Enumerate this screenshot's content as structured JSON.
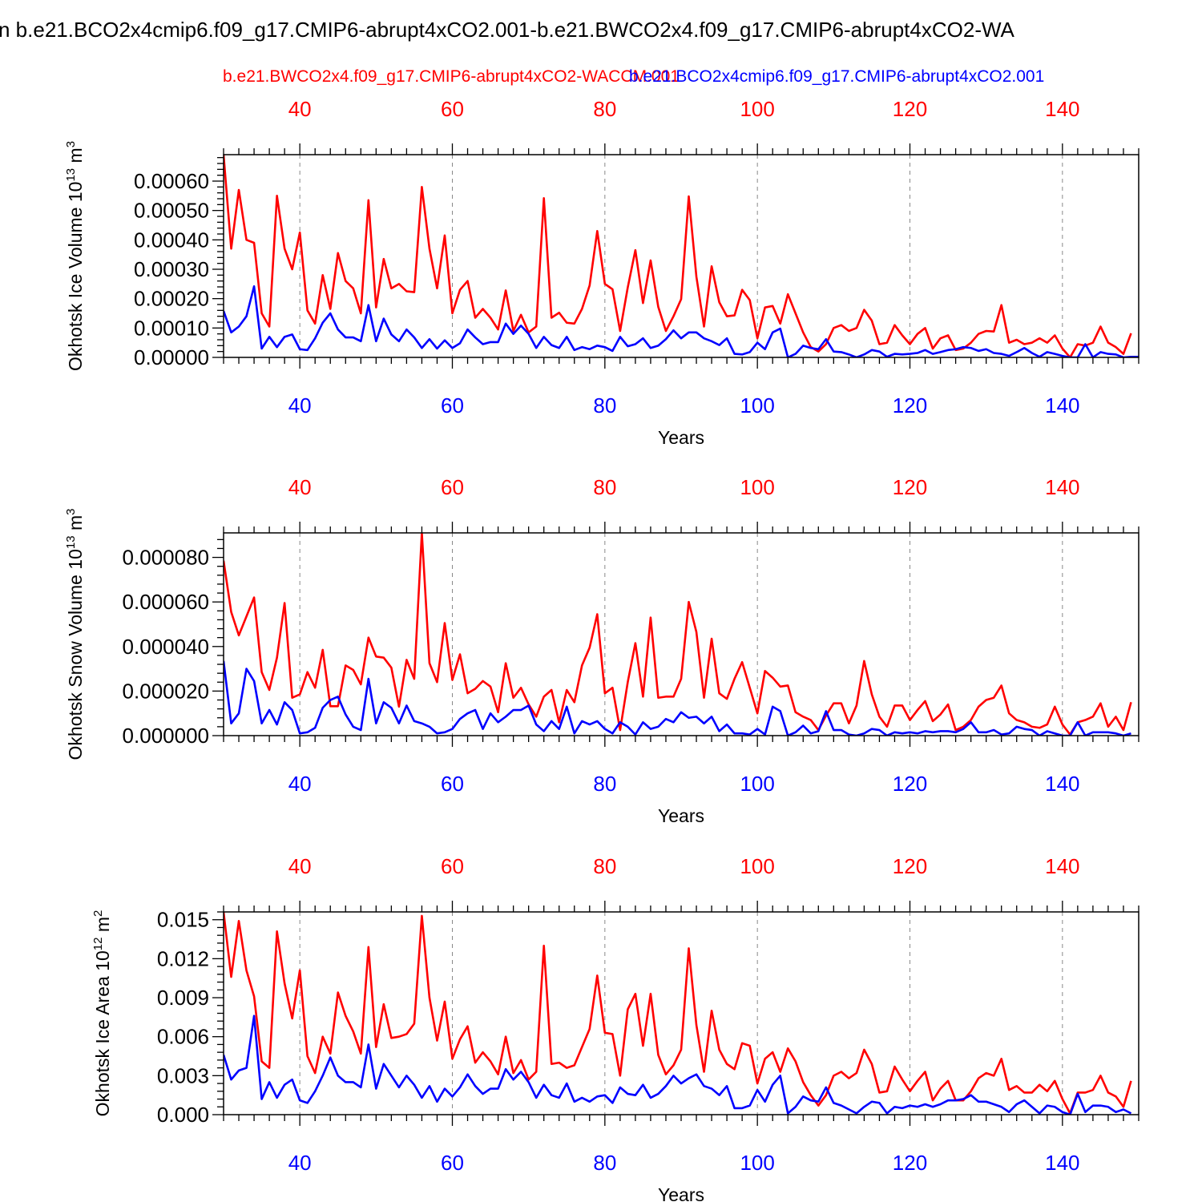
{
  "title": "n b.e21.BCO2x4cmip6.f09_g17.CMIP6-abrupt4xCO2.001-b.e21.BWCO2x4.f09_g17.CMIP6-abrupt4xCO2-WA",
  "legend": {
    "red_label": "b.e21.BWCO2x4.f09_g17.CMIP6-abrupt4xCO2-WACCM.001",
    "blue_label": "b.e21.BCO2x4cmip6.f09_g17.CMIP6-abrupt4xCO2.001"
  },
  "colors": {
    "red": "#ff0000",
    "blue": "#0000ff",
    "axis": "#000000",
    "grid": "#888888"
  },
  "chart_data": [
    {
      "type": "line",
      "ylabel": "Okhotsk Ice Volume 10",
      "ylabel_exp": "13",
      "ylabel_unit": "m",
      "ylabel_unit_exp": "3",
      "xlabel": "Years",
      "xlim": [
        30,
        150
      ],
      "ylim": [
        0,
        0.00069
      ],
      "yticks": [
        0,
        0.0001,
        0.0002,
        0.0003,
        0.0004,
        0.0005,
        0.0006
      ],
      "ytick_labels": [
        "0.00000",
        "0.00010",
        "0.00020",
        "0.00030",
        "0.00040",
        "0.00050",
        "0.00060"
      ],
      "xticks": [
        40,
        60,
        80,
        100,
        120,
        140
      ],
      "xtick_labels": [
        "40",
        "60",
        "80",
        "100",
        "120",
        "140"
      ],
      "x_start": 30,
      "series": [
        {
          "name": "b.e21.BWCO2x4.f09_g17.CMIP6-abrupt4xCO2-WACCM.001",
          "color": "red",
          "values": [
            0.00069,
            0.00037,
            0.00057,
            0.0004,
            0.00039,
            0.00015,
            0.000105,
            0.00055,
            0.00037,
            0.0003,
            0.000425,
            0.00016,
            0.000115,
            0.00028,
            0.000165,
            0.000355,
            0.00026,
            0.000235,
            0.00015,
            0.000535,
            0.00017,
            0.000335,
            0.000235,
            0.00025,
            0.000225,
            0.000222,
            0.00058,
            0.00037,
            0.000235,
            0.000415,
            0.00015,
            0.00023,
            0.00026,
            0.000135,
            0.000165,
            0.000135,
            9.5e-05,
            0.000228,
            9e-05,
            0.000145,
            8.5e-05,
            0.000105,
            0.000542,
            0.000135,
            0.000152,
            0.000118,
            0.000115,
            0.000165,
            0.000245,
            0.00043,
            0.00025,
            0.000232,
            9e-05,
            0.000238,
            0.000365,
            0.000185,
            0.00033,
            0.000172,
            9e-05,
            0.00014,
            0.000198,
            0.000548,
            0.000275,
            0.000105,
            0.00031,
            0.000188,
            0.00014,
            0.000143,
            0.00023,
            0.000195,
            6.5e-05,
            0.00017,
            0.000175,
            0.000115,
            0.000215,
            0.00015,
            8.5e-05,
            3.5e-05,
            2e-05,
            4.5e-05,
            0.0001,
            0.00011,
            9e-05,
            0.0001,
            0.000162,
            0.000125,
            4.5e-05,
            5e-05,
            0.00011,
            7.5e-05,
            4.5e-05,
            8e-05,
            0.0001,
            3e-05,
            6.5e-05,
            7.5e-05,
            2.5e-05,
            3e-05,
            5e-05,
            8e-05,
            9e-05,
            8.8e-05,
            0.000178,
            5e-05,
            6e-05,
            4.5e-05,
            5e-05,
            6.5e-05,
            5e-05,
            7.5e-05,
            3e-05,
            0.0,
            4.5e-05,
            4e-05,
            5e-05,
            0.000105,
            5e-05,
            3.5e-05,
            1.2e-05,
            8.2e-05
          ]
        },
        {
          "name": "b.e21.BCO2x4cmip6.f09_g17.CMIP6-abrupt4xCO2.001",
          "color": "blue",
          "values": [
            0.000158,
            8.5e-05,
            0.000105,
            0.00014,
            0.000242,
            3e-05,
            7e-05,
            3.5e-05,
            7e-05,
            7.8e-05,
            2.8e-05,
            2.5e-05,
            6.5e-05,
            0.000118,
            0.00015,
            9.5e-05,
            6.8e-05,
            6.8e-05,
            5.5e-05,
            0.000178,
            5.5e-05,
            0.000132,
            7.8e-05,
            5.5e-05,
            9.5e-05,
            6.8e-05,
            3.2e-05,
            6.2e-05,
            3e-05,
            5.8e-05,
            3.2e-05,
            4.8e-05,
            9.5e-05,
            6.8e-05,
            4.5e-05,
            5.2e-05,
            5.2e-05,
            0.000115,
            8e-05,
            0.000108,
            8e-05,
            3.2e-05,
            7e-05,
            4.2e-05,
            3.2e-05,
            7e-05,
            2.5e-05,
            3.5e-05,
            2.8e-05,
            4e-05,
            3.5e-05,
            2.2e-05,
            7e-05,
            3.8e-05,
            4.5e-05,
            6.5e-05,
            3.2e-05,
            4e-05,
            6.2e-05,
            9.2e-05,
            6.5e-05,
            8.5e-05,
            8.5e-05,
            6.5e-05,
            5.5e-05,
            4.2e-05,
            6.5e-05,
            1.2e-05,
            1e-05,
            1.8e-05,
            5e-05,
            2.8e-05,
            8.5e-05,
            9.8e-05,
            0.0,
            1.2e-05,
            4e-05,
            3.2e-05,
            2.8e-05,
            6.2e-05,
            2e-05,
            1.8e-05,
            1e-05,
            0.0,
            1e-05,
            2.5e-05,
            2e-05,
            2e-06,
            1.2e-05,
            1e-05,
            1.2e-05,
            1.5e-05,
            2.5e-05,
            1.2e-05,
            1.8e-05,
            2.5e-05,
            2.8e-05,
            3.5e-05,
            3.2e-05,
            2.2e-05,
            2.8e-05,
            1.5e-05,
            1.2e-05,
            5e-06,
            1.8e-05,
            3.2e-05,
            1.5e-05,
            2e-06,
            1.8e-05,
            1.2e-05,
            5e-06,
            0.0,
            0.0,
            4.5e-05,
            0.0,
            1.8e-05,
            1.2e-05,
            1e-05,
            0.0,
            2e-06,
            2e-06
          ]
        }
      ]
    },
    {
      "type": "line",
      "ylabel": "Okhotsk Snow Volume 10",
      "ylabel_exp": "13",
      "ylabel_unit": "m",
      "ylabel_unit_exp": "3",
      "xlabel": "Years",
      "xlim": [
        30,
        150
      ],
      "ylim": [
        0,
        9.1e-05
      ],
      "yticks": [
        0,
        2e-05,
        4e-05,
        6e-05,
        8e-05
      ],
      "ytick_labels": [
        "0.000000",
        "0.000020",
        "0.000040",
        "0.000060",
        "0.000080"
      ],
      "xticks": [
        40,
        60,
        80,
        100,
        120,
        140
      ],
      "xtick_labels": [
        "40",
        "60",
        "80",
        "100",
        "120",
        "140"
      ],
      "x_start": 30,
      "series": [
        {
          "name": "b.e21.BWCO2x4.f09_g17.CMIP6-abrupt4xCO2-WACCM.001",
          "color": "red",
          "values": [
            7.85e-05,
            5.55e-05,
            4.5e-05,
            5.35e-05,
            6.2e-05,
            2.85e-05,
            2.05e-05,
            3.5e-05,
            5.95e-05,
            1.7e-05,
            1.85e-05,
            2.85e-05,
            2.15e-05,
            3.85e-05,
            1.32e-05,
            1.32e-05,
            3.15e-05,
            2.95e-05,
            2.3e-05,
            4.4e-05,
            3.55e-05,
            3.5e-05,
            3.05e-05,
            1.3e-05,
            3.4e-05,
            2.55e-05,
            9.1e-05,
            3.25e-05,
            2.4e-05,
            5.05e-05,
            2.5e-05,
            3.65e-05,
            1.9e-05,
            2.1e-05,
            2.45e-05,
            2.2e-05,
            1.05e-05,
            3.25e-05,
            1.7e-05,
            2.15e-05,
            1.4e-05,
            8.5e-06,
            1.75e-05,
            2.05e-05,
            6e-06,
            2.05e-05,
            1.5e-05,
            3.15e-05,
            3.95e-05,
            5.45e-05,
            1.9e-05,
            2.15e-05,
            2.5e-06,
            2.4e-05,
            4.15e-05,
            1.75e-05,
            5.3e-05,
            1.7e-05,
            1.75e-05,
            1.75e-05,
            2.55e-05,
            6e-05,
            4.65e-05,
            1.7e-05,
            4.35e-05,
            1.9e-05,
            1.65e-05,
            2.55e-05,
            3.3e-05,
            2.15e-05,
            1e-05,
            2.9e-05,
            2.6e-05,
            2.2e-05,
            2.25e-05,
            1.05e-05,
            8.5e-06,
            7e-06,
            2.5e-06,
            9e-06,
            1.45e-05,
            1.45e-05,
            5.5e-06,
            1.35e-05,
            3.35e-05,
            1.85e-05,
            8.5e-06,
            4e-06,
            1.35e-05,
            1.35e-05,
            7e-06,
            1.15e-05,
            1.55e-05,
            6.5e-06,
            9.5e-06,
            1.4e-05,
            2.5e-06,
            4e-06,
            7e-06,
            1.3e-05,
            1.6e-05,
            1.7e-05,
            2.25e-05,
            1e-05,
            7e-06,
            6e-06,
            4e-06,
            3.5e-06,
            5e-06,
            1.3e-05,
            5e-06,
            5e-07,
            6e-06,
            7e-06,
            8.5e-06,
            1.45e-05,
            4e-06,
            8.5e-06,
            2.5e-06,
            1.5e-05
          ]
        },
        {
          "name": "b.e21.BCO2x4cmip6.f09_g17.CMIP6-abrupt4xCO2.001",
          "color": "blue",
          "values": [
            3.35e-05,
            5.5e-06,
            1e-05,
            3e-05,
            2.45e-05,
            5.5e-06,
            1.15e-05,
            5e-06,
            1.5e-05,
            1.15e-05,
            1e-06,
            1.5e-06,
            3.5e-06,
            1.25e-05,
            1.6e-05,
            1.75e-05,
            9.5e-06,
            4e-06,
            2.5e-06,
            2.55e-05,
            5.5e-06,
            1.5e-05,
            1.25e-05,
            5.5e-06,
            1.35e-05,
            6.5e-06,
            5.5e-06,
            4e-06,
            1e-06,
            1.5e-06,
            3e-06,
            7.5e-06,
            1e-05,
            1.15e-05,
            3e-06,
            1e-05,
            6e-06,
            8.5e-06,
            1.15e-05,
            1.15e-05,
            1.35e-05,
            5e-06,
            2e-06,
            6.5e-06,
            3e-06,
            1.3e-05,
            1e-06,
            6.5e-06,
            5e-06,
            6.5e-06,
            3e-06,
            1e-06,
            6e-06,
            4e-06,
            5e-07,
            6e-06,
            3e-06,
            4e-06,
            7.5e-06,
            6e-06,
            1.05e-05,
            8e-06,
            8.5e-06,
            5.5e-06,
            8.5e-06,
            2e-06,
            5e-06,
            1e-06,
            1e-06,
            5e-07,
            3e-06,
            5e-07,
            1.3e-05,
            1.1e-05,
            0.0,
            1.5e-06,
            4.5e-06,
            1e-06,
            2e-06,
            1.1e-05,
            2.5e-06,
            2.5e-06,
            5e-07,
            0.0,
            1e-06,
            3e-06,
            2.5e-06,
            0.0,
            1.5e-06,
            1e-06,
            1.5e-06,
            1e-06,
            2e-06,
            1.5e-06,
            2e-06,
            2e-06,
            1.5e-06,
            3e-06,
            6e-06,
            1.5e-06,
            1.5e-06,
            2.5e-06,
            5e-07,
            1e-06,
            4e-06,
            3e-06,
            2.5e-06,
            0.0,
            2e-06,
            1e-06,
            0.0,
            0.0,
            6e-06,
            0.0,
            1.5e-06,
            1.5e-06,
            1.5e-06,
            1e-06,
            0.0,
            1e-06
          ]
        }
      ]
    },
    {
      "type": "line",
      "ylabel": "Okhotsk Ice Area 10",
      "ylabel_exp": "12",
      "ylabel_unit": "m",
      "ylabel_unit_exp": "2",
      "xlabel": "Years",
      "xlim": [
        30,
        150
      ],
      "ylim": [
        0,
        0.0156
      ],
      "yticks": [
        0,
        0.003,
        0.006,
        0.009,
        0.012,
        0.015
      ],
      "ytick_labels": [
        "0.000",
        "0.003",
        "0.006",
        "0.009",
        "0.012",
        "0.015"
      ],
      "xticks": [
        40,
        60,
        80,
        100,
        120,
        140
      ],
      "xtick_labels": [
        "40",
        "60",
        "80",
        "100",
        "120",
        "140"
      ],
      "x_start": 30,
      "series": [
        {
          "name": "b.e21.BWCO2x4.f09_g17.CMIP6-abrupt4xCO2-WACCM.001",
          "color": "red",
          "values": [
            0.0156,
            0.0106,
            0.0149,
            0.0111,
            0.0091,
            0.0041,
            0.0036,
            0.0141,
            0.0101,
            0.0074,
            0.0111,
            0.0045,
            0.0032,
            0.006,
            0.0047,
            0.0094,
            0.0076,
            0.0064,
            0.0047,
            0.0129,
            0.0052,
            0.0085,
            0.0059,
            0.006,
            0.0062,
            0.007,
            0.0153,
            0.009,
            0.0057,
            0.0087,
            0.0043,
            0.0058,
            0.0068,
            0.004,
            0.0048,
            0.0041,
            0.0031,
            0.006,
            0.0032,
            0.0042,
            0.0027,
            0.0033,
            0.013,
            0.0039,
            0.004,
            0.0036,
            0.0038,
            0.0052,
            0.0066,
            0.0107,
            0.0063,
            0.0062,
            0.003,
            0.0081,
            0.0093,
            0.0053,
            0.0093,
            0.0046,
            0.0031,
            0.0038,
            0.005,
            0.0128,
            0.0069,
            0.0033,
            0.008,
            0.005,
            0.0039,
            0.0035,
            0.0055,
            0.0053,
            0.0024,
            0.0043,
            0.0048,
            0.0033,
            0.0051,
            0.0041,
            0.0025,
            0.0015,
            0.0007,
            0.0015,
            0.003,
            0.0033,
            0.0028,
            0.0032,
            0.005,
            0.0039,
            0.0017,
            0.0018,
            0.0037,
            0.0027,
            0.0018,
            0.0026,
            0.0033,
            0.0011,
            0.002,
            0.0026,
            0.0011,
            0.0011,
            0.0018,
            0.0028,
            0.0032,
            0.003,
            0.0043,
            0.0019,
            0.0022,
            0.0017,
            0.0017,
            0.0023,
            0.0018,
            0.0026,
            0.0012,
            0.0001,
            0.0017,
            0.0017,
            0.0019,
            0.003,
            0.0017,
            0.0014,
            0.0006,
            0.0026
          ]
        },
        {
          "name": "b.e21.BCO2x4cmip6.f09_g17.CMIP6-abrupt4xCO2.001",
          "color": "blue",
          "values": [
            0.0046,
            0.0027,
            0.0034,
            0.0036,
            0.0076,
            0.0012,
            0.0025,
            0.0013,
            0.0023,
            0.0027,
            0.0011,
            0.0009,
            0.0018,
            0.003,
            0.0044,
            0.003,
            0.0025,
            0.0025,
            0.0021,
            0.0054,
            0.002,
            0.0039,
            0.003,
            0.0021,
            0.003,
            0.0023,
            0.0013,
            0.0022,
            0.001,
            0.002,
            0.0014,
            0.0021,
            0.0031,
            0.0022,
            0.0016,
            0.002,
            0.002,
            0.0035,
            0.0027,
            0.0033,
            0.0025,
            0.0013,
            0.0023,
            0.0015,
            0.0013,
            0.0024,
            0.001,
            0.0013,
            0.001,
            0.0014,
            0.0015,
            0.0009,
            0.0021,
            0.0016,
            0.0015,
            0.0023,
            0.0013,
            0.0016,
            0.0022,
            0.003,
            0.0024,
            0.0028,
            0.0031,
            0.0022,
            0.002,
            0.0015,
            0.0022,
            0.0005,
            0.0005,
            0.0007,
            0.0019,
            0.001,
            0.0023,
            0.003,
            0.0001,
            0.0006,
            0.0014,
            0.0011,
            0.001,
            0.0021,
            0.0009,
            0.0007,
            0.0004,
            0.0001,
            0.0006,
            0.001,
            0.0009,
            0.0001,
            0.0006,
            0.0005,
            0.0007,
            0.0006,
            0.0008,
            0.0006,
            0.0008,
            0.0011,
            0.0011,
            0.0012,
            0.0015,
            0.001,
            0.001,
            0.0008,
            0.0006,
            0.0002,
            0.0008,
            0.0011,
            0.0006,
            0.0001,
            0.0007,
            0.0006,
            0.0002,
            0.0,
            0.0016,
            0.0002,
            0.0007,
            0.0007,
            0.0006,
            0.0002,
            0.0004,
            0.0001
          ]
        }
      ]
    }
  ]
}
